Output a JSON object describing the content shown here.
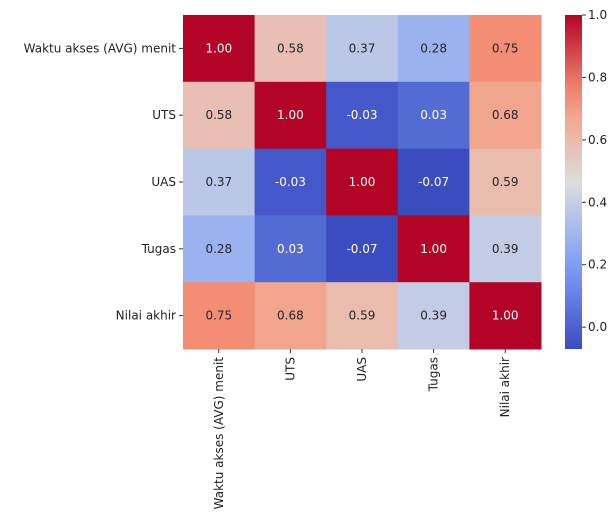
{
  "chart_data": {
    "type": "heatmap",
    "title": "",
    "xlabel": "",
    "ylabel": "",
    "rows": [
      "Waktu akses (AVG) menit",
      "UTS",
      "UAS",
      "Tugas",
      "Nilai akhir"
    ],
    "columns": [
      "Waktu akses (AVG) menit",
      "UTS",
      "UAS",
      "Tugas",
      "Nilai akhir"
    ],
    "values": [
      [
        1.0,
        0.58,
        0.37,
        0.28,
        0.75
      ],
      [
        0.58,
        1.0,
        -0.03,
        0.03,
        0.68
      ],
      [
        0.37,
        -0.03,
        1.0,
        -0.07,
        0.59
      ],
      [
        0.28,
        0.03,
        -0.07,
        1.0,
        0.39
      ],
      [
        0.75,
        0.68,
        0.59,
        0.39,
        1.0
      ]
    ],
    "value_labels": [
      [
        "1.00",
        "0.58",
        "0.37",
        "0.28",
        "0.75"
      ],
      [
        "0.58",
        "1.00",
        "-0.03",
        "0.03",
        "0.68"
      ],
      [
        "0.37",
        "-0.03",
        "1.00",
        "-0.07",
        "0.59"
      ],
      [
        "0.28",
        "0.03",
        "-0.07",
        "1.00",
        "0.39"
      ],
      [
        "0.75",
        "0.68",
        "0.59",
        "0.39",
        "1.00"
      ]
    ],
    "colormap": "coolwarm",
    "vmin": -0.07,
    "vmax": 1.0,
    "colorbar_ticks": [
      0.0,
      0.2,
      0.4,
      0.6,
      0.8,
      1.0
    ],
    "colorbar_tick_labels": [
      "0.0",
      "0.2",
      "0.4",
      "0.6",
      "0.8",
      "1.0"
    ],
    "legend": "colorbar-right",
    "grid": false
  }
}
